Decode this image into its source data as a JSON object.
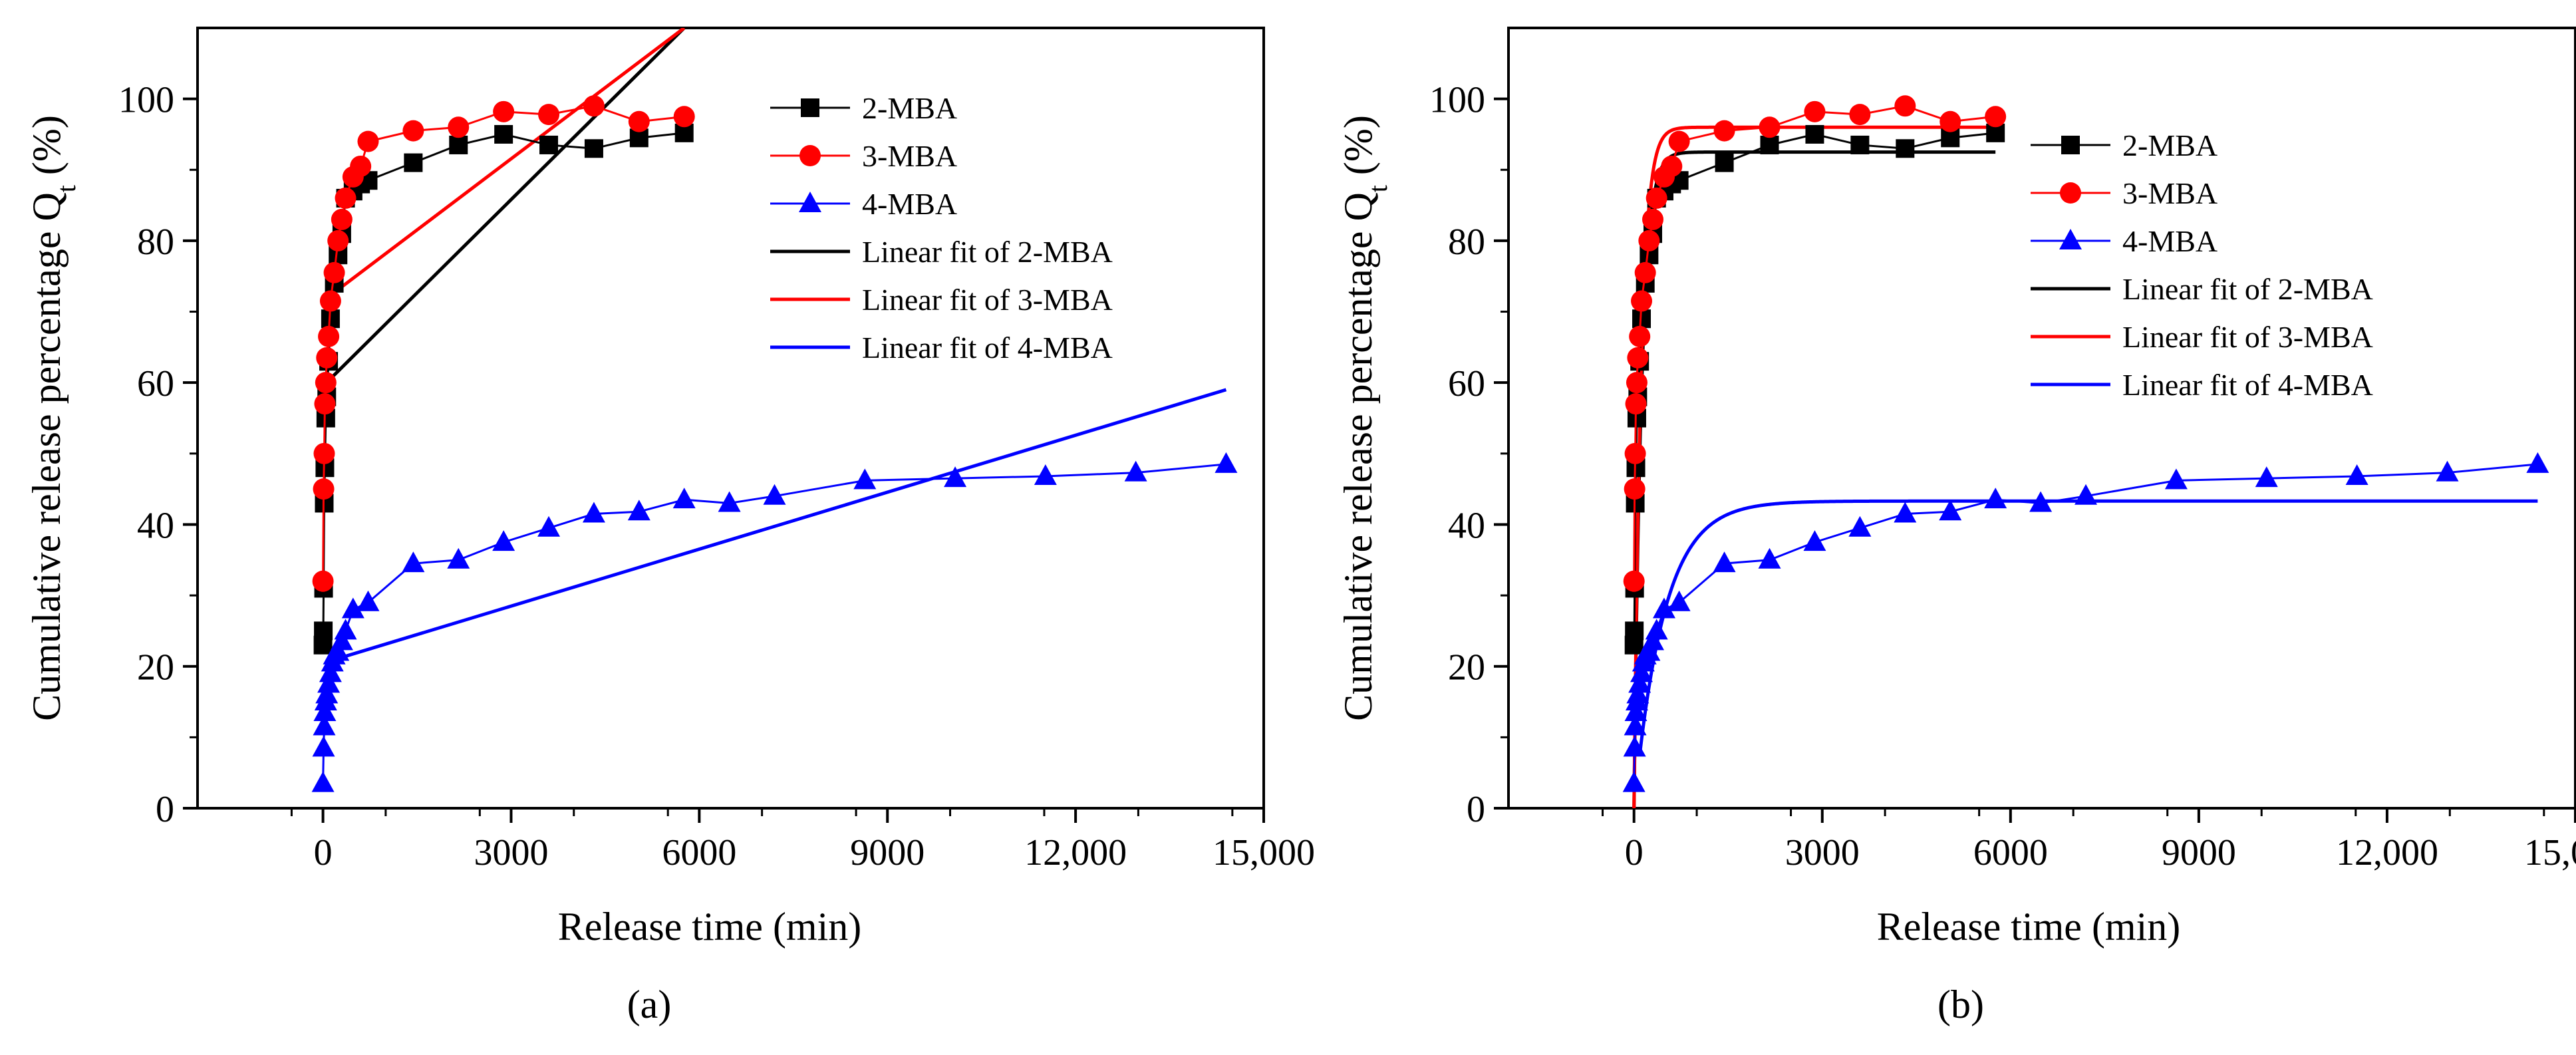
{
  "chart_data": [
    {
      "panel": "a",
      "type": "scatter",
      "panel_label": "(a)",
      "xlabel": "Release time (min)",
      "ylabel": "Cumulative release percentage Q",
      "ylabel_sub": "t",
      "ylabel_suffix": " (%)",
      "xlim": [
        -2000,
        15000
      ],
      "ylim": [
        0,
        110
      ],
      "xticks": [
        0,
        3000,
        6000,
        9000,
        12000,
        15000
      ],
      "xtick_labels": [
        "0",
        "3000",
        "6000",
        "9000",
        "12,000",
        "15,000"
      ],
      "yticks": [
        0,
        20,
        40,
        60,
        80,
        100
      ],
      "ytick_labels": [
        "0",
        "20",
        "40",
        "60",
        "80",
        "100"
      ],
      "series": [
        {
          "name": "2-MBA",
          "color": "#000000",
          "marker": "square",
          "x": [
            0,
            5,
            10,
            20,
            30,
            45,
            60,
            90,
            120,
            180,
            240,
            300,
            360,
            480,
            600,
            720,
            1440,
            2160,
            2880,
            3600,
            4320,
            5040,
            5760
          ],
          "y": [
            23,
            25,
            31,
            43,
            48,
            55,
            58,
            63,
            69,
            74,
            78,
            81,
            86,
            87,
            88,
            88.5,
            91,
            93.5,
            95,
            93.5,
            93,
            94.5,
            95.2
          ]
        },
        {
          "name": "3-MBA",
          "color": "#ff0000",
          "marker": "circle",
          "x": [
            0,
            10,
            20,
            30,
            45,
            60,
            90,
            120,
            180,
            240,
            300,
            360,
            480,
            600,
            720,
            1440,
            2160,
            2880,
            3600,
            4320,
            5040,
            5760
          ],
          "y": [
            32,
            45,
            50,
            57,
            60,
            63.5,
            66.5,
            71.5,
            75.5,
            80,
            83,
            86,
            89,
            90.5,
            94,
            95.5,
            96,
            98.2,
            97.8,
            99,
            96.8,
            97.5
          ]
        },
        {
          "name": "4-MBA",
          "color": "#0000ff",
          "marker": "triangle",
          "x": [
            0,
            10,
            20,
            30,
            45,
            60,
            90,
            120,
            150,
            180,
            240,
            300,
            360,
            480,
            720,
            1440,
            2160,
            2880,
            3600,
            4320,
            5040,
            5760,
            6480,
            7200,
            8640,
            10080,
            11520,
            12960,
            14400
          ],
          "y": [
            3.5,
            8.5,
            11.5,
            13.5,
            15,
            16,
            17.5,
            19,
            20.5,
            21.5,
            22,
            23.5,
            25,
            28,
            29,
            34.5,
            35,
            37.5,
            39.5,
            41.5,
            41.8,
            43.5,
            43,
            44,
            46.2,
            46.5,
            46.8,
            47.3,
            48.5
          ]
        },
        {
          "name": "Linear fit of 2-MBA",
          "color": "#000000",
          "line": true,
          "x": [
            0,
            5760
          ],
          "y": [
            59.5,
            110
          ]
        },
        {
          "name": "Linear fit of 3-MBA",
          "color": "#ff0000",
          "line": true,
          "x": [
            0,
            5760
          ],
          "y": [
            71.5,
            110
          ]
        },
        {
          "name": "Linear fit of 4-MBA",
          "color": "#0000ff",
          "line": true,
          "x": [
            200,
            14400
          ],
          "y": [
            21,
            59
          ]
        }
      ]
    },
    {
      "panel": "b",
      "type": "scatter",
      "panel_label": "(b)",
      "xlabel": "Release time (min)",
      "ylabel": "Cumulative release percentage Q",
      "ylabel_sub": "t",
      "ylabel_suffix": " (%)",
      "xlim": [
        -2000,
        15000
      ],
      "ylim": [
        0,
        110
      ],
      "xticks": [
        0,
        3000,
        6000,
        9000,
        12000,
        15000
      ],
      "xtick_labels": [
        "0",
        "3000",
        "6000",
        "9000",
        "12,000",
        "15,000"
      ],
      "yticks": [
        0,
        20,
        40,
        60,
        80,
        100
      ],
      "ytick_labels": [
        "0",
        "20",
        "40",
        "60",
        "80",
        "100"
      ],
      "series": [
        {
          "name": "2-MBA",
          "color": "#000000",
          "marker": "square",
          "x": [
            0,
            5,
            10,
            20,
            30,
            45,
            60,
            90,
            120,
            180,
            240,
            300,
            360,
            480,
            600,
            720,
            1440,
            2160,
            2880,
            3600,
            4320,
            5040,
            5760
          ],
          "y": [
            23,
            25,
            31,
            43,
            48,
            55,
            58,
            63,
            69,
            74,
            78,
            81,
            86,
            87,
            88,
            88.5,
            91,
            93.5,
            95,
            93.5,
            93,
            94.5,
            95.2
          ]
        },
        {
          "name": "3-MBA",
          "color": "#ff0000",
          "marker": "circle",
          "x": [
            0,
            10,
            20,
            30,
            45,
            60,
            90,
            120,
            180,
            240,
            300,
            360,
            480,
            600,
            720,
            1440,
            2160,
            2880,
            3600,
            4320,
            5040,
            5760
          ],
          "y": [
            32,
            45,
            50,
            57,
            60,
            63.5,
            66.5,
            71.5,
            75.5,
            80,
            83,
            86,
            89,
            90.5,
            94,
            95.5,
            96,
            98.2,
            97.8,
            99,
            96.8,
            97.5
          ]
        },
        {
          "name": "4-MBA",
          "color": "#0000ff",
          "marker": "triangle",
          "x": [
            0,
            10,
            20,
            30,
            45,
            60,
            90,
            120,
            150,
            180,
            240,
            300,
            360,
            480,
            720,
            1440,
            2160,
            2880,
            3600,
            4320,
            5040,
            5760,
            6480,
            7200,
            8640,
            10080,
            11520,
            12960,
            14400
          ],
          "y": [
            3.5,
            8.5,
            11.5,
            13.5,
            15,
            16,
            17.5,
            19,
            20.5,
            21.5,
            22,
            23.5,
            25,
            28,
            29,
            34.5,
            35,
            37.5,
            39.5,
            41.5,
            41.8,
            43.5,
            43,
            44,
            46.2,
            46.5,
            46.8,
            47.3,
            48.5
          ]
        },
        {
          "name": "Linear fit of 2-MBA",
          "color": "#000000",
          "fit": "first-order",
          "qmax": 92.5,
          "k": 0.0085,
          "xmax": 5760
        },
        {
          "name": "Linear fit of 3-MBA",
          "color": "#ff0000",
          "fit": "first-order",
          "qmax": 96,
          "k": 0.009,
          "xmax": 5760
        },
        {
          "name": "Linear fit of 4-MBA",
          "color": "#0000ff",
          "fit": "first-order",
          "qmax": 43.3,
          "k": 0.0021,
          "xmax": 14400,
          "x0": 100
        }
      ]
    }
  ]
}
